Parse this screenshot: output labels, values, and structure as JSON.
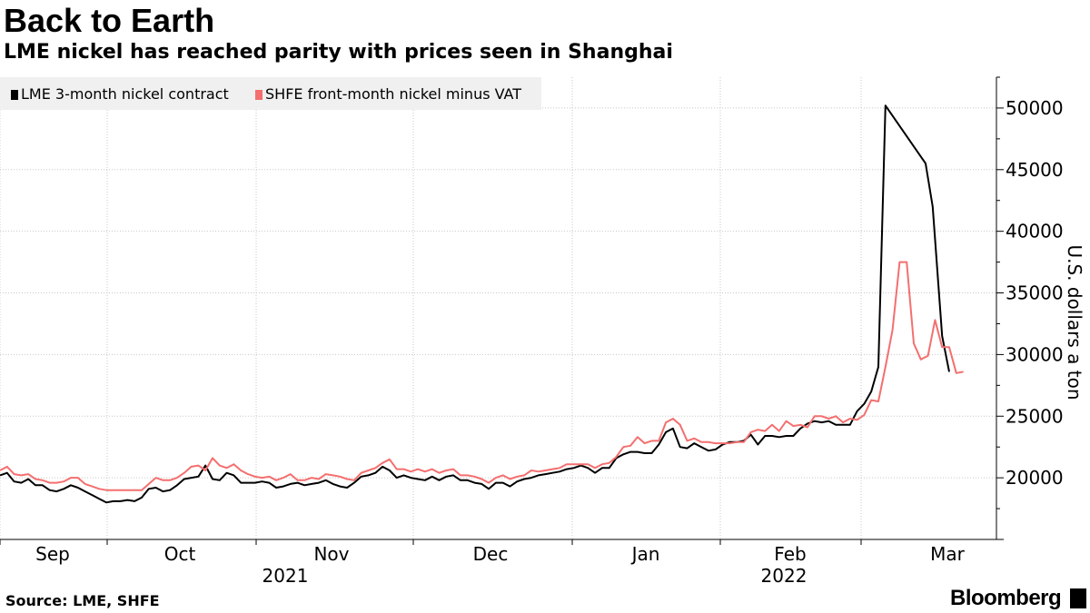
{
  "chart_data": {
    "type": "line",
    "title": "Back to Earth",
    "subtitle": "LME nickel has reached parity with prices seen in Shanghai",
    "ylabel": "U.S. dollars a ton",
    "ylim": [
      15000,
      52500
    ],
    "yticks": [
      "20000",
      "25000",
      "30000",
      "35000",
      "40000",
      "45000",
      "50000"
    ],
    "ytick_values": [
      20000,
      25000,
      30000,
      35000,
      40000,
      45000,
      50000
    ],
    "x_start": 0,
    "x_end": 191,
    "month_labels": [
      "Sep",
      "Oct",
      "Nov",
      "Dec",
      "Jan",
      "Feb",
      "Mar"
    ],
    "month_positions": [
      10,
      34,
      63,
      94,
      124,
      152,
      182
    ],
    "grid_positions": [
      0,
      21,
      49,
      79,
      110,
      139,
      166
    ],
    "year_labels": [
      "2021",
      "2022"
    ],
    "year_positions": [
      55,
      152
    ],
    "series": [
      {
        "name": "LME 3-month nickel contract",
        "color": "#000000",
        "points": [
          [
            0,
            20200
          ],
          [
            1.5,
            20400
          ],
          [
            3,
            19700
          ],
          [
            4.5,
            19600
          ],
          [
            6,
            19900
          ],
          [
            7.5,
            19400
          ],
          [
            9,
            19400
          ],
          [
            10.5,
            19000
          ],
          [
            12,
            18900
          ],
          [
            13.5,
            19100
          ],
          [
            15,
            19400
          ],
          [
            16.5,
            19200
          ],
          [
            18,
            18900
          ],
          [
            19.5,
            18600
          ],
          [
            21,
            18300
          ],
          [
            22.5,
            18000
          ],
          [
            24,
            18100
          ],
          [
            25.5,
            18100
          ],
          [
            27,
            18200
          ],
          [
            28.5,
            18100
          ],
          [
            30,
            18400
          ],
          [
            31.5,
            19100
          ],
          [
            33,
            19200
          ],
          [
            34.5,
            18900
          ],
          [
            36,
            19000
          ],
          [
            37.5,
            19400
          ],
          [
            39,
            19900
          ],
          [
            40.5,
            20000
          ],
          [
            42,
            20100
          ],
          [
            43.5,
            21000
          ],
          [
            45,
            19900
          ],
          [
            46.5,
            19800
          ],
          [
            48,
            20400
          ],
          [
            49.5,
            20200
          ],
          [
            51,
            19600
          ],
          [
            52.5,
            19600
          ],
          [
            54,
            19600
          ],
          [
            55.5,
            19700
          ],
          [
            57,
            19600
          ],
          [
            58.5,
            19200
          ],
          [
            60,
            19300
          ],
          [
            61.5,
            19500
          ],
          [
            63,
            19600
          ],
          [
            64.5,
            19400
          ],
          [
            66,
            19500
          ],
          [
            67.5,
            19600
          ],
          [
            69,
            19800
          ],
          [
            70.5,
            19500
          ],
          [
            72,
            19300
          ],
          [
            73.5,
            19200
          ],
          [
            75,
            19600
          ],
          [
            76.5,
            20100
          ],
          [
            78,
            20200
          ],
          [
            79.5,
            20400
          ],
          [
            81,
            20900
          ],
          [
            82.5,
            20600
          ],
          [
            84,
            20000
          ],
          [
            85.5,
            20200
          ],
          [
            87,
            20000
          ],
          [
            88.5,
            19900
          ],
          [
            90,
            19800
          ],
          [
            91.5,
            20100
          ],
          [
            93,
            19800
          ],
          [
            94.5,
            20100
          ],
          [
            96,
            20200
          ],
          [
            97.5,
            19800
          ],
          [
            99,
            19800
          ],
          [
            100.5,
            19600
          ],
          [
            102,
            19500
          ],
          [
            103.5,
            19100
          ],
          [
            105,
            19600
          ],
          [
            106.5,
            19600
          ],
          [
            108,
            19300
          ],
          [
            109.5,
            19700
          ],
          [
            111,
            19900
          ],
          [
            112.5,
            20000
          ],
          [
            114,
            20200
          ],
          [
            115.5,
            20300
          ],
          [
            117,
            20400
          ],
          [
            118.5,
            20500
          ],
          [
            120,
            20700
          ],
          [
            121.5,
            20800
          ],
          [
            123,
            21000
          ],
          [
            124.5,
            20800
          ],
          [
            126,
            20400
          ],
          [
            127.5,
            20800
          ],
          [
            129,
            20800
          ],
          [
            130.5,
            21600
          ],
          [
            132,
            21900
          ],
          [
            133.5,
            22100
          ],
          [
            135,
            22100
          ],
          [
            136.5,
            22000
          ],
          [
            138,
            22000
          ],
          [
            139.5,
            22700
          ],
          [
            141,
            23700
          ],
          [
            142.5,
            24000
          ],
          [
            144,
            22500
          ],
          [
            145.5,
            22400
          ],
          [
            147,
            22800
          ],
          [
            148.5,
            22500
          ],
          [
            150,
            22200
          ],
          [
            151.5,
            22300
          ],
          [
            153,
            22700
          ],
          [
            154.5,
            22900
          ],
          [
            156,
            22900
          ],
          [
            157.5,
            23000
          ],
          [
            159,
            23500
          ],
          [
            160.5,
            22700
          ],
          [
            162,
            23400
          ],
          [
            163.5,
            23400
          ],
          [
            165,
            23300
          ],
          [
            166.5,
            23400
          ],
          [
            168,
            23400
          ],
          [
            169.5,
            24000
          ],
          [
            171,
            24400
          ],
          [
            172.5,
            24600
          ],
          [
            174,
            24500
          ],
          [
            175.5,
            24600
          ],
          [
            177,
            24300
          ],
          [
            178.5,
            24300
          ],
          [
            180,
            24300
          ],
          [
            181.5,
            25400
          ],
          [
            183,
            26000
          ],
          [
            184.5,
            27000
          ],
          [
            186,
            29000
          ],
          [
            187.5,
            50200
          ],
          [
            196,
            45500
          ],
          [
            197.5,
            42000
          ],
          [
            199.5,
            31500
          ],
          [
            201,
            28600
          ]
        ]
      },
      {
        "name": "SHFE front-month nickel minus VAT",
        "color": "#f46f6f",
        "points": [
          [
            0,
            20600
          ],
          [
            1.5,
            20900
          ],
          [
            3,
            20300
          ],
          [
            4.5,
            20200
          ],
          [
            6,
            20300
          ],
          [
            7.5,
            19900
          ],
          [
            9,
            19800
          ],
          [
            10.5,
            19600
          ],
          [
            12,
            19600
          ],
          [
            13.5,
            19700
          ],
          [
            15,
            20000
          ],
          [
            16.5,
            20000
          ],
          [
            18,
            19500
          ],
          [
            19.5,
            19300
          ],
          [
            21,
            19100
          ],
          [
            22.5,
            19000
          ],
          [
            24,
            19000
          ],
          [
            25.5,
            19000
          ],
          [
            27,
            19000
          ],
          [
            28.5,
            19000
          ],
          [
            30,
            19000
          ],
          [
            31.5,
            19500
          ],
          [
            33,
            20000
          ],
          [
            34.5,
            19800
          ],
          [
            36,
            19800
          ],
          [
            37.5,
            20000
          ],
          [
            39,
            20400
          ],
          [
            40.5,
            20900
          ],
          [
            42,
            21000
          ],
          [
            43.5,
            20600
          ],
          [
            45,
            21600
          ],
          [
            46.5,
            21000
          ],
          [
            48,
            20800
          ],
          [
            49.5,
            21100
          ],
          [
            51,
            20600
          ],
          [
            52.5,
            20300
          ],
          [
            54,
            20100
          ],
          [
            55.5,
            20000
          ],
          [
            57,
            20100
          ],
          [
            58.5,
            19800
          ],
          [
            60,
            20000
          ],
          [
            61.5,
            20300
          ],
          [
            63,
            19800
          ],
          [
            64.5,
            19800
          ],
          [
            66,
            20000
          ],
          [
            67.5,
            19900
          ],
          [
            69,
            20300
          ],
          [
            70.5,
            20200
          ],
          [
            72,
            20100
          ],
          [
            73.5,
            19900
          ],
          [
            75,
            19800
          ],
          [
            76.5,
            20400
          ],
          [
            78,
            20600
          ],
          [
            79.5,
            20800
          ],
          [
            81,
            21200
          ],
          [
            82.5,
            21500
          ],
          [
            84,
            20700
          ],
          [
            85.5,
            20700
          ],
          [
            87,
            20500
          ],
          [
            88.5,
            20700
          ],
          [
            90,
            20500
          ],
          [
            91.5,
            20700
          ],
          [
            93,
            20400
          ],
          [
            94.5,
            20600
          ],
          [
            96,
            20700
          ],
          [
            97.5,
            20200
          ],
          [
            99,
            20200
          ],
          [
            100.5,
            20100
          ],
          [
            102,
            19900
          ],
          [
            103.5,
            19600
          ],
          [
            105,
            20000
          ],
          [
            106.5,
            20200
          ],
          [
            108,
            19900
          ],
          [
            109.5,
            20100
          ],
          [
            111,
            20200
          ],
          [
            112.5,
            20600
          ],
          [
            114,
            20500
          ],
          [
            115.5,
            20600
          ],
          [
            117,
            20700
          ],
          [
            118.5,
            20800
          ],
          [
            120,
            21100
          ],
          [
            121.5,
            21100
          ],
          [
            123,
            21100
          ],
          [
            124.5,
            21100
          ],
          [
            126,
            20800
          ],
          [
            127.5,
            21100
          ],
          [
            129,
            21200
          ],
          [
            130.5,
            21700
          ],
          [
            132,
            22500
          ],
          [
            133.5,
            22600
          ],
          [
            135,
            23300
          ],
          [
            136.5,
            22800
          ],
          [
            138,
            23000
          ],
          [
            139.5,
            23000
          ],
          [
            141,
            24500
          ],
          [
            142.5,
            24800
          ],
          [
            144,
            24300
          ],
          [
            145.5,
            23000
          ],
          [
            147,
            23200
          ],
          [
            148.5,
            22900
          ],
          [
            150,
            22900
          ],
          [
            151.5,
            22800
          ],
          [
            153,
            22800
          ],
          [
            154.5,
            22800
          ],
          [
            156,
            22900
          ],
          [
            157.5,
            22900
          ],
          [
            159,
            23700
          ],
          [
            160.5,
            23900
          ],
          [
            162,
            23800
          ],
          [
            163.5,
            24300
          ],
          [
            165,
            23800
          ],
          [
            166.5,
            24600
          ],
          [
            168,
            24200
          ],
          [
            169.5,
            24300
          ],
          [
            171,
            24100
          ],
          [
            172.5,
            25000
          ],
          [
            174,
            25000
          ],
          [
            175.5,
            24800
          ],
          [
            177,
            25000
          ],
          [
            178.5,
            24500
          ],
          [
            180,
            24800
          ],
          [
            181.5,
            24700
          ],
          [
            183,
            25100
          ],
          [
            184.5,
            26300
          ],
          [
            186,
            26200
          ],
          [
            187.5,
            29000
          ],
          [
            189,
            32000
          ],
          [
            190.5,
            37500
          ],
          [
            192,
            37500
          ],
          [
            193.5,
            30900
          ],
          [
            195,
            29600
          ],
          [
            196.5,
            29900
          ],
          [
            198,
            32800
          ],
          [
            199.5,
            30600
          ],
          [
            201,
            30600
          ],
          [
            202.5,
            28500
          ],
          [
            204,
            28600
          ]
        ]
      }
    ]
  },
  "legend": {
    "items": [
      {
        "label": "LME 3-month nickel contract",
        "color": "#000000"
      },
      {
        "label": "SHFE front-month nickel minus VAT",
        "color": "#f46f6f"
      }
    ]
  },
  "footer": {
    "source": "Source: LME, SHFE",
    "brand": "Bloomberg"
  }
}
